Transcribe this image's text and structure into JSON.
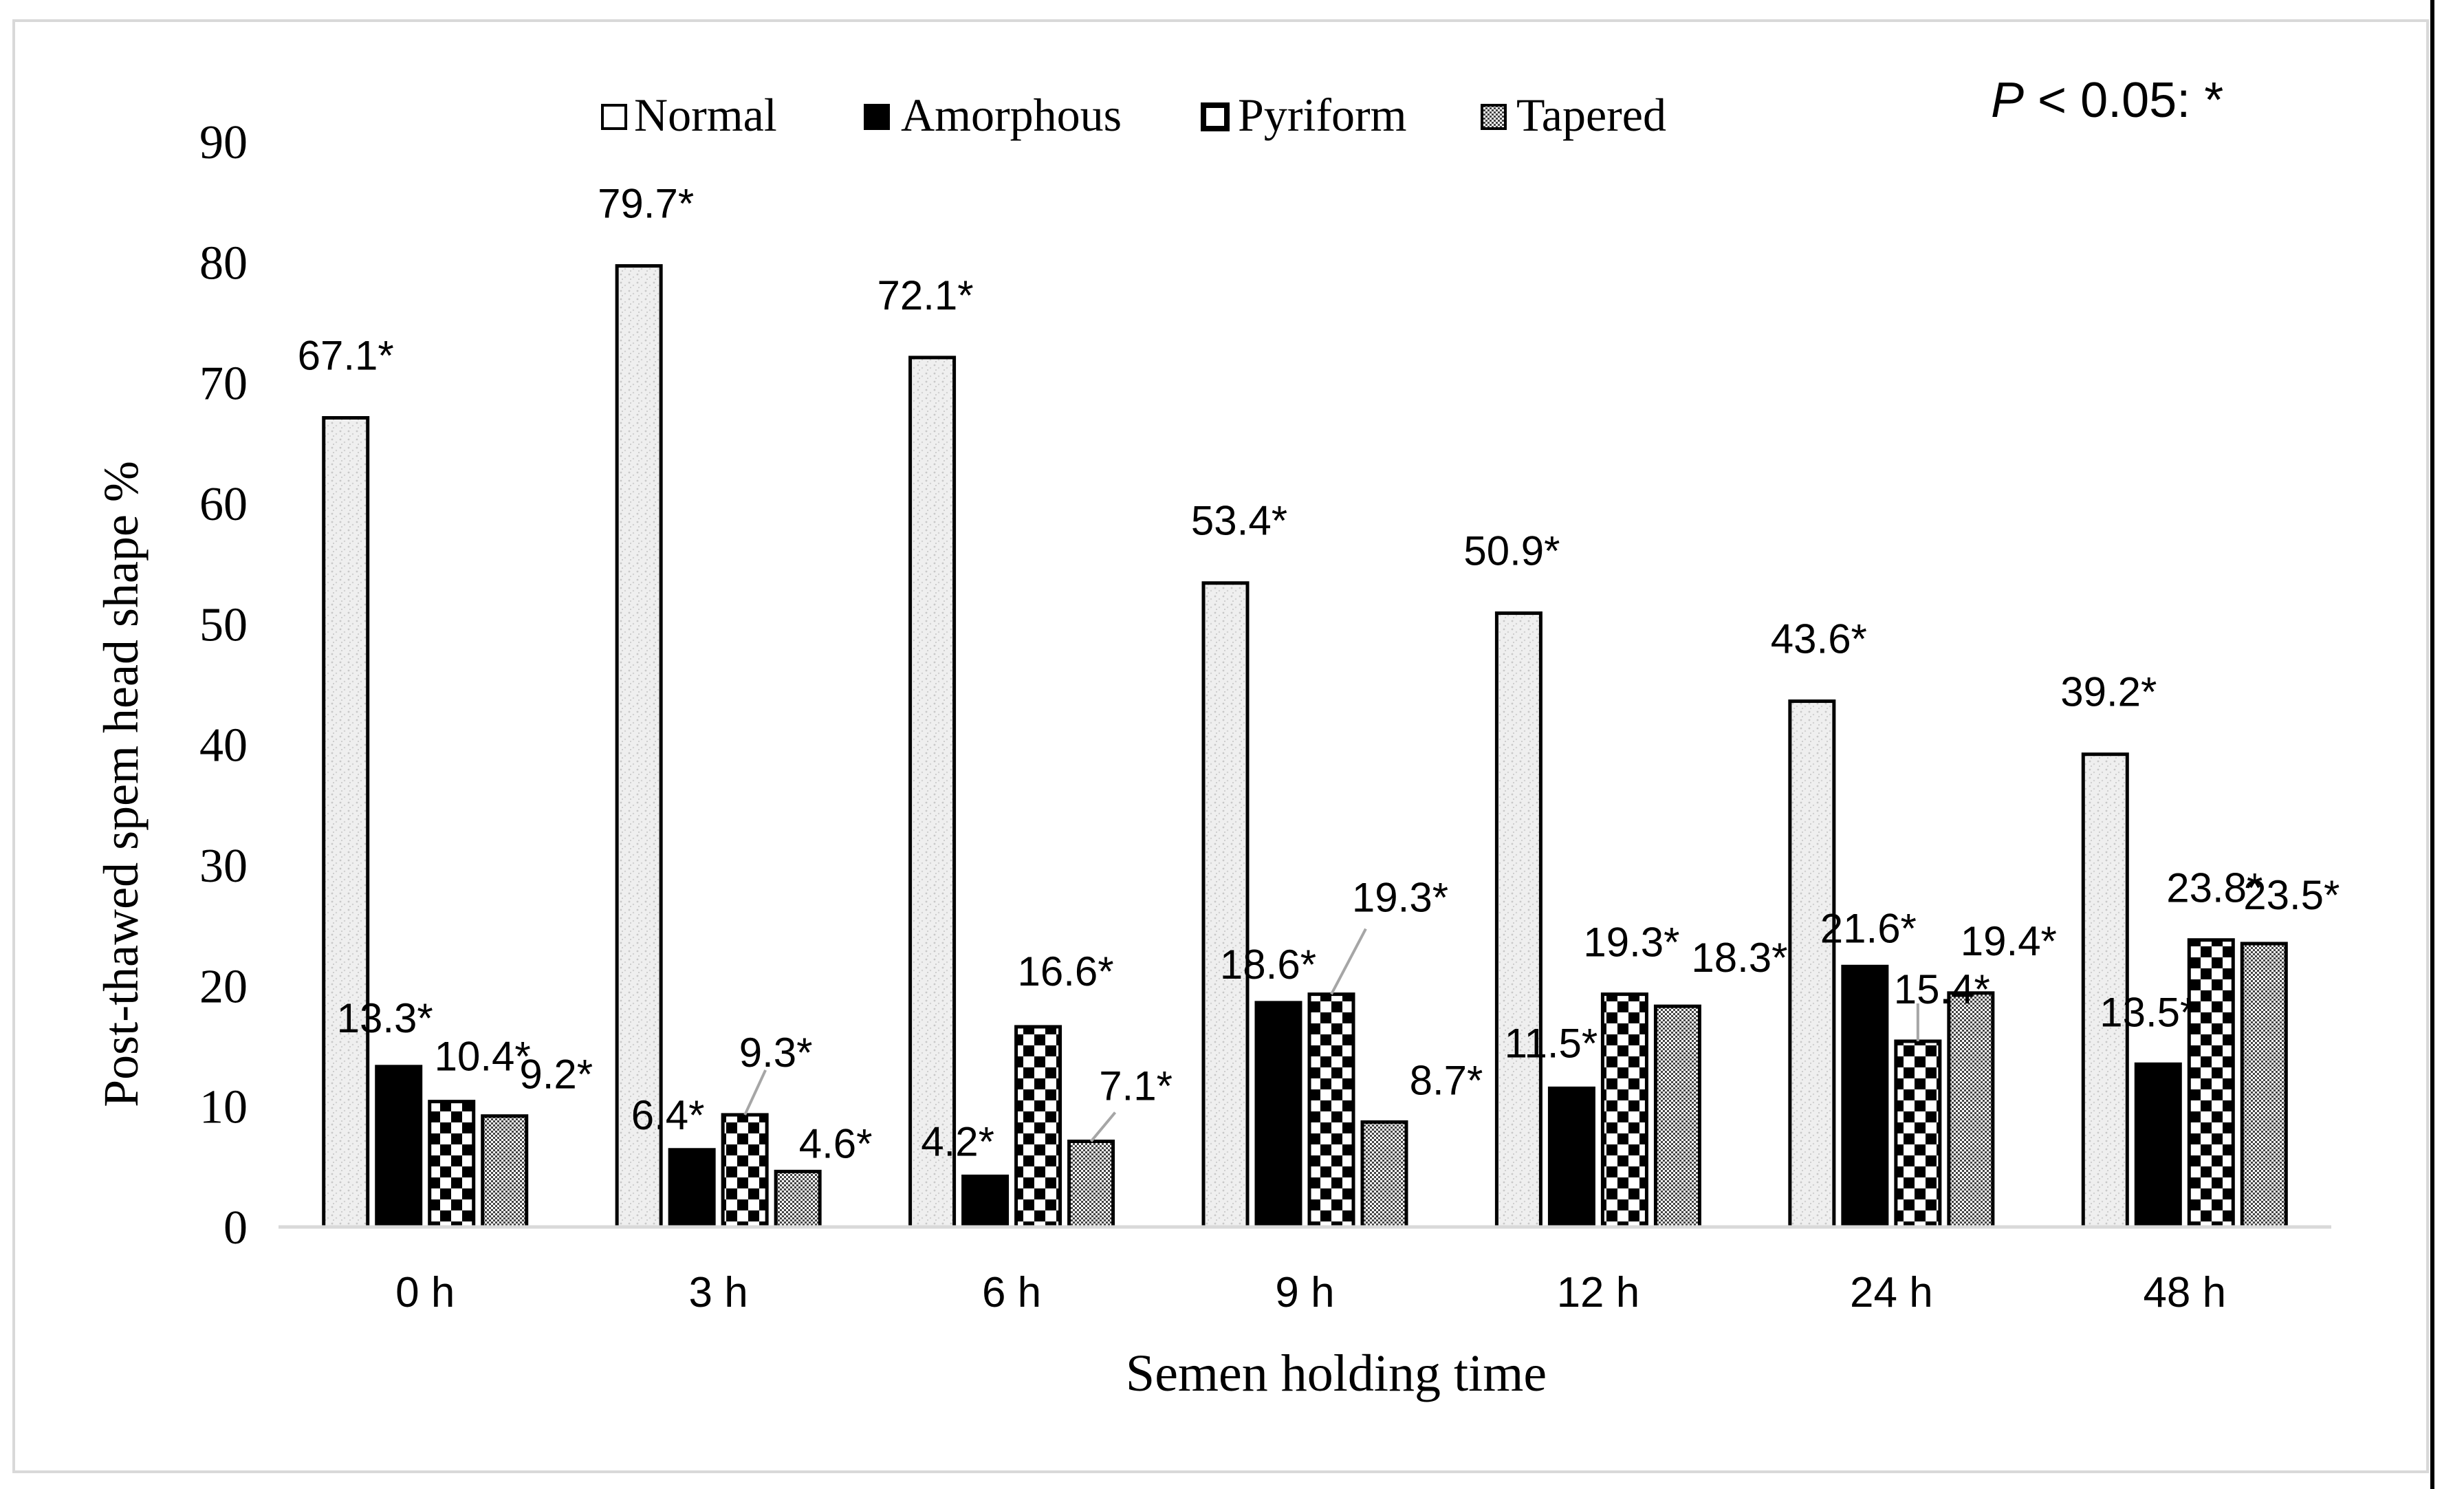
{
  "chart_data": {
    "type": "bar",
    "xlabel": "Semen holding time",
    "ylabel": "Post-thawed spem head shape %",
    "ylim": [
      0,
      90
    ],
    "yticks": [
      0,
      10,
      20,
      30,
      40,
      50,
      60,
      70,
      80,
      90
    ],
    "grid": false,
    "legend_position": "top-center",
    "annotation": {
      "prefix": "P",
      "text": " < 0.05: *"
    },
    "categories": [
      "0 h",
      "3 h",
      "6 h",
      "9 h",
      "12 h",
      "24 h",
      "48 h"
    ],
    "series": [
      {
        "name": "Normal",
        "pattern": "speckle",
        "values": [
          67.1,
          79.7,
          72.1,
          53.4,
          50.9,
          43.6,
          39.2
        ],
        "labels": [
          "67.1*",
          "79.7*",
          "72.1*",
          "53.4*",
          "50.9*",
          "43.6*",
          "39.2*"
        ]
      },
      {
        "name": "Amorphous",
        "pattern": "solid",
        "values": [
          13.3,
          6.4,
          4.2,
          18.6,
          11.5,
          21.6,
          13.5
        ],
        "labels": [
          "13.3*",
          "6.4*",
          "4.2*",
          "18.6*",
          "11.5*",
          "21.6*",
          "13.5*"
        ]
      },
      {
        "name": "Pyriform",
        "pattern": "checker",
        "values": [
          10.4,
          9.3,
          16.6,
          19.3,
          19.3,
          15.4,
          23.8
        ],
        "labels": [
          "10.4*",
          "9.3*",
          "16.6*",
          "19.3*",
          "19.3*",
          "15.4*",
          "23.8*"
        ]
      },
      {
        "name": "Tapered",
        "pattern": "dense",
        "values": [
          9.2,
          4.6,
          7.1,
          8.7,
          18.3,
          19.4,
          23.5
        ],
        "labels": [
          "9.2*",
          "4.6*",
          "7.1*",
          "8.7*",
          "18.3*",
          "19.4*",
          "23.5*"
        ]
      }
    ],
    "colors": {
      "frame": "#d9d9d9",
      "axis": "#d9d9d9",
      "bar_edge": "#000000",
      "text": "#000000",
      "leader": "#a6a6a6",
      "speckle_bg": "#efefef"
    }
  }
}
